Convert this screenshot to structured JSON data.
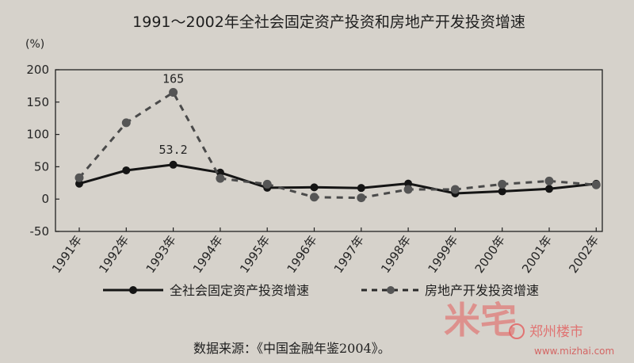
{
  "chart_data": {
    "type": "line",
    "title": "1991～2002年全社会固定资产投资和房地产开发投资增速",
    "ylabel": "(%)",
    "ylim": [
      -50,
      200
    ],
    "yticks": [
      "200",
      "150",
      "100",
      "50",
      "0",
      "-50"
    ],
    "categories": [
      "1991年",
      "1992年",
      "1993年",
      "1994年",
      "1995年",
      "1996年",
      "1997年",
      "1998年",
      "1999年",
      "2000年",
      "2001年",
      "2002年"
    ],
    "series": [
      {
        "name": "全社会固定资产投资增速",
        "style": "solid",
        "color": "#151515",
        "values": [
          23.9,
          44.4,
          53.2,
          41.0,
          17.5,
          18.2,
          17.2,
          24.0,
          8.8,
          12.0,
          15.8,
          23.7
        ]
      },
      {
        "name": "房地产开发投资增速",
        "style": "dashed",
        "color": "#4a4a4a",
        "values": [
          33.0,
          118.0,
          165.0,
          32.0,
          23.0,
          3.0,
          2.0,
          15.0,
          15.0,
          23.0,
          28.0,
          22.0
        ]
      }
    ],
    "annotations": [
      {
        "label": "165",
        "series": 1,
        "index": 2
      },
      {
        "label": "53.2",
        "series": 0,
        "index": 2
      }
    ],
    "grid": false,
    "legend": "bottom"
  },
  "source": "数据来源：《中国金融年鉴2004》。",
  "watermark": {
    "mark": "米宅",
    "name": "郑州楼市",
    "url": "www.mizhai.com"
  }
}
